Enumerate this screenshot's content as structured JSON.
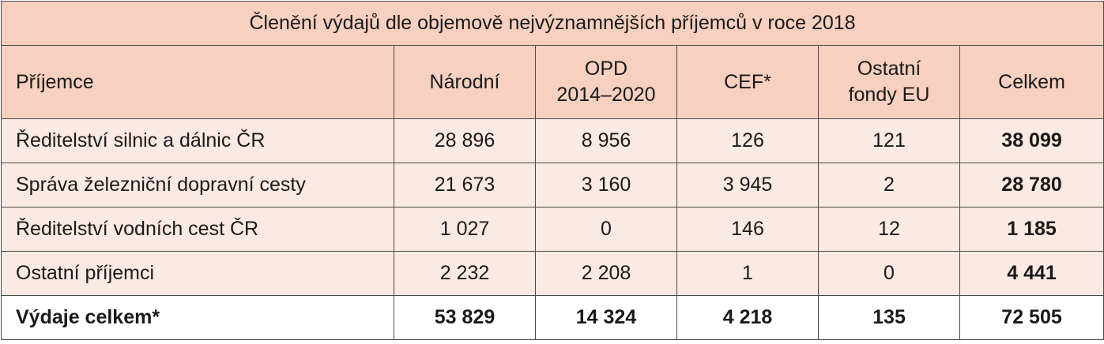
{
  "table": {
    "title": "Členění výdajů dle objemově nejvýznamnějších příjemců v roce 2018",
    "headers": [
      {
        "line1": "Příjemce",
        "line2": ""
      },
      {
        "line1": "Národní",
        "line2": ""
      },
      {
        "line1": "OPD",
        "line2": "2014–2020"
      },
      {
        "line1": "CEF*",
        "line2": ""
      },
      {
        "line1": "Ostatní",
        "line2": "fondy EU"
      },
      {
        "line1": "Celkem",
        "line2": ""
      }
    ],
    "rows": [
      [
        "Ředitelství silnic a dálnic ČR",
        "28 896",
        "8 956",
        "126",
        "121",
        "38 099"
      ],
      [
        "Správa železniční dopravní cesty",
        "21 673",
        "3 160",
        "3 945",
        "2",
        "28 780"
      ],
      [
        "Ředitelství vodních cest ČR",
        "1 027",
        "0",
        "146",
        "12",
        "1 185"
      ],
      [
        "Ostatní příjemci",
        "2 232",
        "2 208",
        "1",
        "0",
        "4 441"
      ]
    ],
    "total": [
      "Výdaje celkem*",
      "53 829",
      "14 324",
      "4 218",
      "135",
      "72 505"
    ]
  }
}
